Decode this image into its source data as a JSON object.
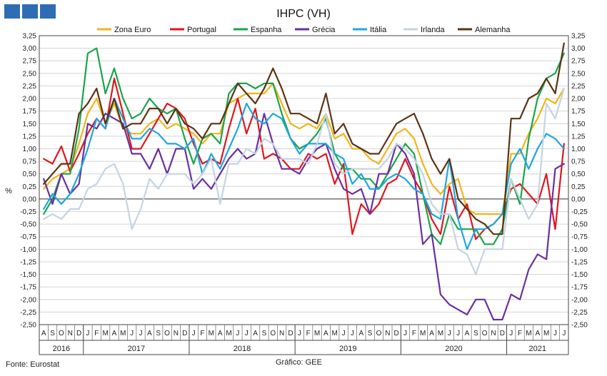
{
  "footer": {
    "source": "Fonte: Eurostat",
    "credit": "Gráfico: GEE"
  },
  "colors": {
    "Zona Euro": "#f2b418",
    "Portugal": "#e0161d",
    "Espanha": "#1aa54b",
    "Grécia": "#6a2fa0",
    "Itália": "#1ea6e0",
    "Irlanda": "#c4d4e2",
    "Alemanha": "#5b3414",
    "logo": "#2e6db4"
  },
  "chart_data": {
    "type": "line",
    "title": "IHPC (VH)",
    "ylabel": "%",
    "ylim": [
      -2.5,
      3.25
    ],
    "ytick_step": 0.25,
    "grid": true,
    "legend_position": "top",
    "x": [
      "A",
      "S",
      "O",
      "N",
      "D",
      "J",
      "F",
      "M",
      "A",
      "M",
      "J",
      "J",
      "A",
      "S",
      "O",
      "N",
      "D",
      "J",
      "F",
      "M",
      "A",
      "M",
      "J",
      "J",
      "A",
      "S",
      "O",
      "N",
      "D",
      "J",
      "F",
      "M",
      "A",
      "M",
      "J",
      "J",
      "A",
      "S",
      "O",
      "N",
      "D",
      "J",
      "F",
      "M",
      "A",
      "M",
      "J",
      "J",
      "A",
      "S",
      "O",
      "N",
      "D",
      "J",
      "F",
      "M",
      "A",
      "M",
      "J",
      "J"
    ],
    "years": [
      {
        "label": "2016",
        "start": 0,
        "end": 4
      },
      {
        "label": "2017",
        "start": 5,
        "end": 16
      },
      {
        "label": "2018",
        "start": 17,
        "end": 28
      },
      {
        "label": "2019",
        "start": 29,
        "end": 40
      },
      {
        "label": "2020",
        "start": 41,
        "end": 52
      },
      {
        "label": "2021",
        "start": 53,
        "end": 59
      }
    ],
    "series": [
      {
        "name": "Zona Euro",
        "values": [
          0.2,
          0.4,
          0.5,
          0.6,
          1.1,
          1.7,
          2.0,
          1.5,
          1.9,
          1.4,
          1.3,
          1.3,
          1.5,
          1.6,
          1.4,
          1.5,
          1.4,
          1.3,
          1.1,
          1.3,
          1.3,
          1.9,
          2.0,
          2.1,
          2.1,
          2.1,
          2.3,
          1.9,
          1.5,
          1.4,
          1.5,
          1.4,
          1.7,
          1.2,
          1.3,
          1.0,
          1.0,
          0.8,
          0.7,
          1.0,
          1.3,
          1.4,
          1.2,
          0.7,
          0.3,
          0.1,
          0.3,
          0.4,
          -0.2,
          -0.3,
          -0.3,
          -0.3,
          -0.3,
          0.9,
          0.9,
          1.3,
          1.6,
          2.0,
          1.9,
          2.2
        ]
      },
      {
        "name": "Portugal",
        "values": [
          0.8,
          0.7,
          1.05,
          0.55,
          0.9,
          1.3,
          1.6,
          1.4,
          2.4,
          1.7,
          1.0,
          1.0,
          1.3,
          1.6,
          1.9,
          1.8,
          1.6,
          1.1,
          0.7,
          0.8,
          0.7,
          1.4,
          2.0,
          1.3,
          1.8,
          0.8,
          0.9,
          0.8,
          0.6,
          0.6,
          0.9,
          0.8,
          0.9,
          0.3,
          0.7,
          -0.7,
          -0.1,
          -0.3,
          -0.1,
          0.3,
          0.4,
          0.8,
          0.4,
          0.1,
          -0.4,
          -0.7,
          0.25,
          -0.4,
          -0.1,
          -0.8,
          -0.6,
          -0.5,
          -0.3,
          0.2,
          0.3,
          0.1,
          -0.1,
          0.5,
          -0.6,
          1.1
        ]
      },
      {
        "name": "Espanha",
        "values": [
          -0.3,
          0.0,
          0.5,
          0.5,
          1.4,
          2.9,
          3.0,
          2.1,
          2.6,
          2.0,
          1.6,
          1.7,
          2.0,
          1.8,
          1.7,
          1.8,
          1.2,
          0.7,
          1.2,
          1.3,
          1.1,
          2.1,
          2.3,
          2.3,
          2.2,
          2.3,
          2.3,
          1.7,
          1.2,
          1.0,
          1.1,
          1.3,
          1.6,
          0.9,
          0.6,
          0.6,
          0.4,
          0.4,
          0.2,
          0.5,
          0.8,
          1.1,
          0.9,
          0.1,
          -0.7,
          -0.9,
          -0.3,
          -0.6,
          -0.6,
          -0.6,
          -0.9,
          -0.9,
          -0.6,
          0.4,
          -0.1,
          1.2,
          2.0,
          2.4,
          2.5,
          2.9
        ]
      },
      {
        "name": "Grécia",
        "values": [
          0.4,
          -0.1,
          0.5,
          0.1,
          0.3,
          1.5,
          1.4,
          1.7,
          1.6,
          1.5,
          0.9,
          0.9,
          0.6,
          1.0,
          0.5,
          1.0,
          1.0,
          0.2,
          0.4,
          0.2,
          0.5,
          0.8,
          1.0,
          0.8,
          0.9,
          1.7,
          1.1,
          0.6,
          0.6,
          0.5,
          0.8,
          1.0,
          1.1,
          0.6,
          0.2,
          0.1,
          0.2,
          -0.3,
          0.5,
          0.5,
          1.1,
          0.9,
          0.5,
          -0.9,
          -0.7,
          -1.9,
          -2.1,
          -2.2,
          -2.3,
          -2.0,
          -2.0,
          -2.4,
          -2.4,
          -1.9,
          -2.0,
          -1.4,
          -1.1,
          -1.2,
          0.6,
          0.7
        ]
      },
      {
        "name": "Itália",
        "values": [
          -0.2,
          0.1,
          -0.1,
          0.1,
          0.5,
          1.0,
          1.6,
          1.4,
          2.0,
          1.6,
          1.2,
          1.2,
          1.4,
          1.3,
          1.1,
          1.1,
          1.0,
          1.2,
          0.5,
          0.9,
          0.6,
          1.0,
          1.4,
          1.9,
          1.6,
          1.5,
          1.7,
          1.6,
          1.2,
          0.9,
          1.1,
          1.1,
          1.1,
          0.9,
          0.8,
          0.3,
          0.5,
          0.2,
          0.2,
          0.4,
          0.5,
          0.4,
          0.2,
          0.1,
          -0.3,
          -0.4,
          0.8,
          -0.4,
          -1.0,
          -0.6,
          -0.6,
          -0.5,
          -0.3,
          0.7,
          1.0,
          0.6,
          1.0,
          1.3,
          1.2,
          1.0
        ]
      },
      {
        "name": "Irlanda",
        "values": [
          -0.4,
          -0.3,
          -0.4,
          -0.2,
          -0.2,
          0.2,
          0.3,
          0.6,
          0.7,
          0.3,
          -0.6,
          -0.2,
          0.4,
          0.2,
          0.5,
          0.5,
          0.5,
          0.3,
          0.5,
          0.8,
          -0.1,
          0.7,
          0.7,
          1.0,
          0.9,
          1.2,
          1.1,
          0.8,
          0.8,
          0.8,
          0.7,
          1.1,
          1.7,
          0.7,
          0.5,
          0.6,
          0.6,
          0.6,
          0.6,
          0.8,
          1.1,
          1.0,
          0.8,
          0.5,
          -0.1,
          -0.3,
          -0.3,
          -1.0,
          -1.1,
          -1.5,
          -1.0,
          -1.0,
          -1.0,
          0.4,
          0.0,
          -0.4,
          -0.1,
          1.9,
          1.6,
          2.2
        ]
      },
      {
        "name": "Alemanha",
        "values": [
          0.3,
          0.5,
          0.7,
          0.7,
          1.7,
          1.9,
          2.2,
          1.5,
          2.0,
          1.4,
          1.5,
          1.5,
          1.8,
          1.8,
          1.5,
          1.8,
          1.5,
          1.4,
          1.2,
          1.5,
          1.5,
          1.9,
          2.3,
          2.1,
          1.9,
          2.2,
          2.6,
          2.2,
          1.7,
          1.7,
          1.6,
          1.5,
          2.1,
          1.3,
          1.5,
          1.1,
          1.0,
          0.9,
          0.9,
          1.2,
          1.5,
          1.6,
          1.7,
          1.3,
          0.8,
          0.5,
          0.8,
          0.0,
          -0.2,
          -0.4,
          -0.5,
          -0.7,
          -0.7,
          1.6,
          1.6,
          2.0,
          2.1,
          2.4,
          2.1,
          3.1
        ]
      }
    ]
  }
}
